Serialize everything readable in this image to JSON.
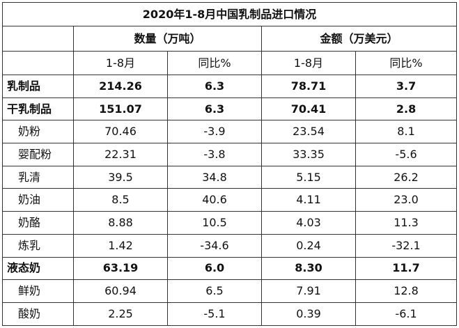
{
  "title": "2020年1-8月中国乳制品进口情况",
  "groups": {
    "quantity": "数量（万吨）",
    "amount": "金额（万美元）"
  },
  "subheaders": {
    "period": "1-8月",
    "yoy": "同比%"
  },
  "rows": [
    {
      "name": "乳制品",
      "qty": "214.26",
      "qty_yoy": "6.3",
      "amt": "78.71",
      "amt_yoy": "3.7",
      "bold": true,
      "indent": false
    },
    {
      "name": "干乳制品",
      "qty": "151.07",
      "qty_yoy": "6.3",
      "amt": "70.41",
      "amt_yoy": "2.8",
      "bold": true,
      "indent": false
    },
    {
      "name": "奶粉",
      "qty": "70.46",
      "qty_yoy": "-3.9",
      "amt": "23.54",
      "amt_yoy": "8.1",
      "bold": false,
      "indent": true
    },
    {
      "name": "婴配粉",
      "qty": "22.31",
      "qty_yoy": "-3.8",
      "amt": "33.35",
      "amt_yoy": "-5.6",
      "bold": false,
      "indent": true
    },
    {
      "name": "乳清",
      "qty": "39.5",
      "qty_yoy": "34.8",
      "amt": "5.15",
      "amt_yoy": "26.2",
      "bold": false,
      "indent": true
    },
    {
      "name": "奶油",
      "qty": "8.5",
      "qty_yoy": "40.6",
      "amt": "4.11",
      "amt_yoy": "23.0",
      "bold": false,
      "indent": true
    },
    {
      "name": "奶酪",
      "qty": "8.88",
      "qty_yoy": "10.5",
      "amt": "4.03",
      "amt_yoy": "11.3",
      "bold": false,
      "indent": true
    },
    {
      "name": "炼乳",
      "qty": "1.42",
      "qty_yoy": "-34.6",
      "amt": "0.24",
      "amt_yoy": "-32.1",
      "bold": false,
      "indent": true
    },
    {
      "name": "液态奶",
      "qty": "63.19",
      "qty_yoy": "6.0",
      "amt": "8.30",
      "amt_yoy": "11.7",
      "bold": true,
      "indent": false
    },
    {
      "name": "鲜奶",
      "qty": "60.94",
      "qty_yoy": "6.5",
      "amt": "7.91",
      "amt_yoy": "12.8",
      "bold": false,
      "indent": true
    },
    {
      "name": "酸奶",
      "qty": "2.25",
      "qty_yoy": "-5.1",
      "amt": "0.39",
      "amt_yoy": "-6.1",
      "bold": false,
      "indent": true
    }
  ]
}
